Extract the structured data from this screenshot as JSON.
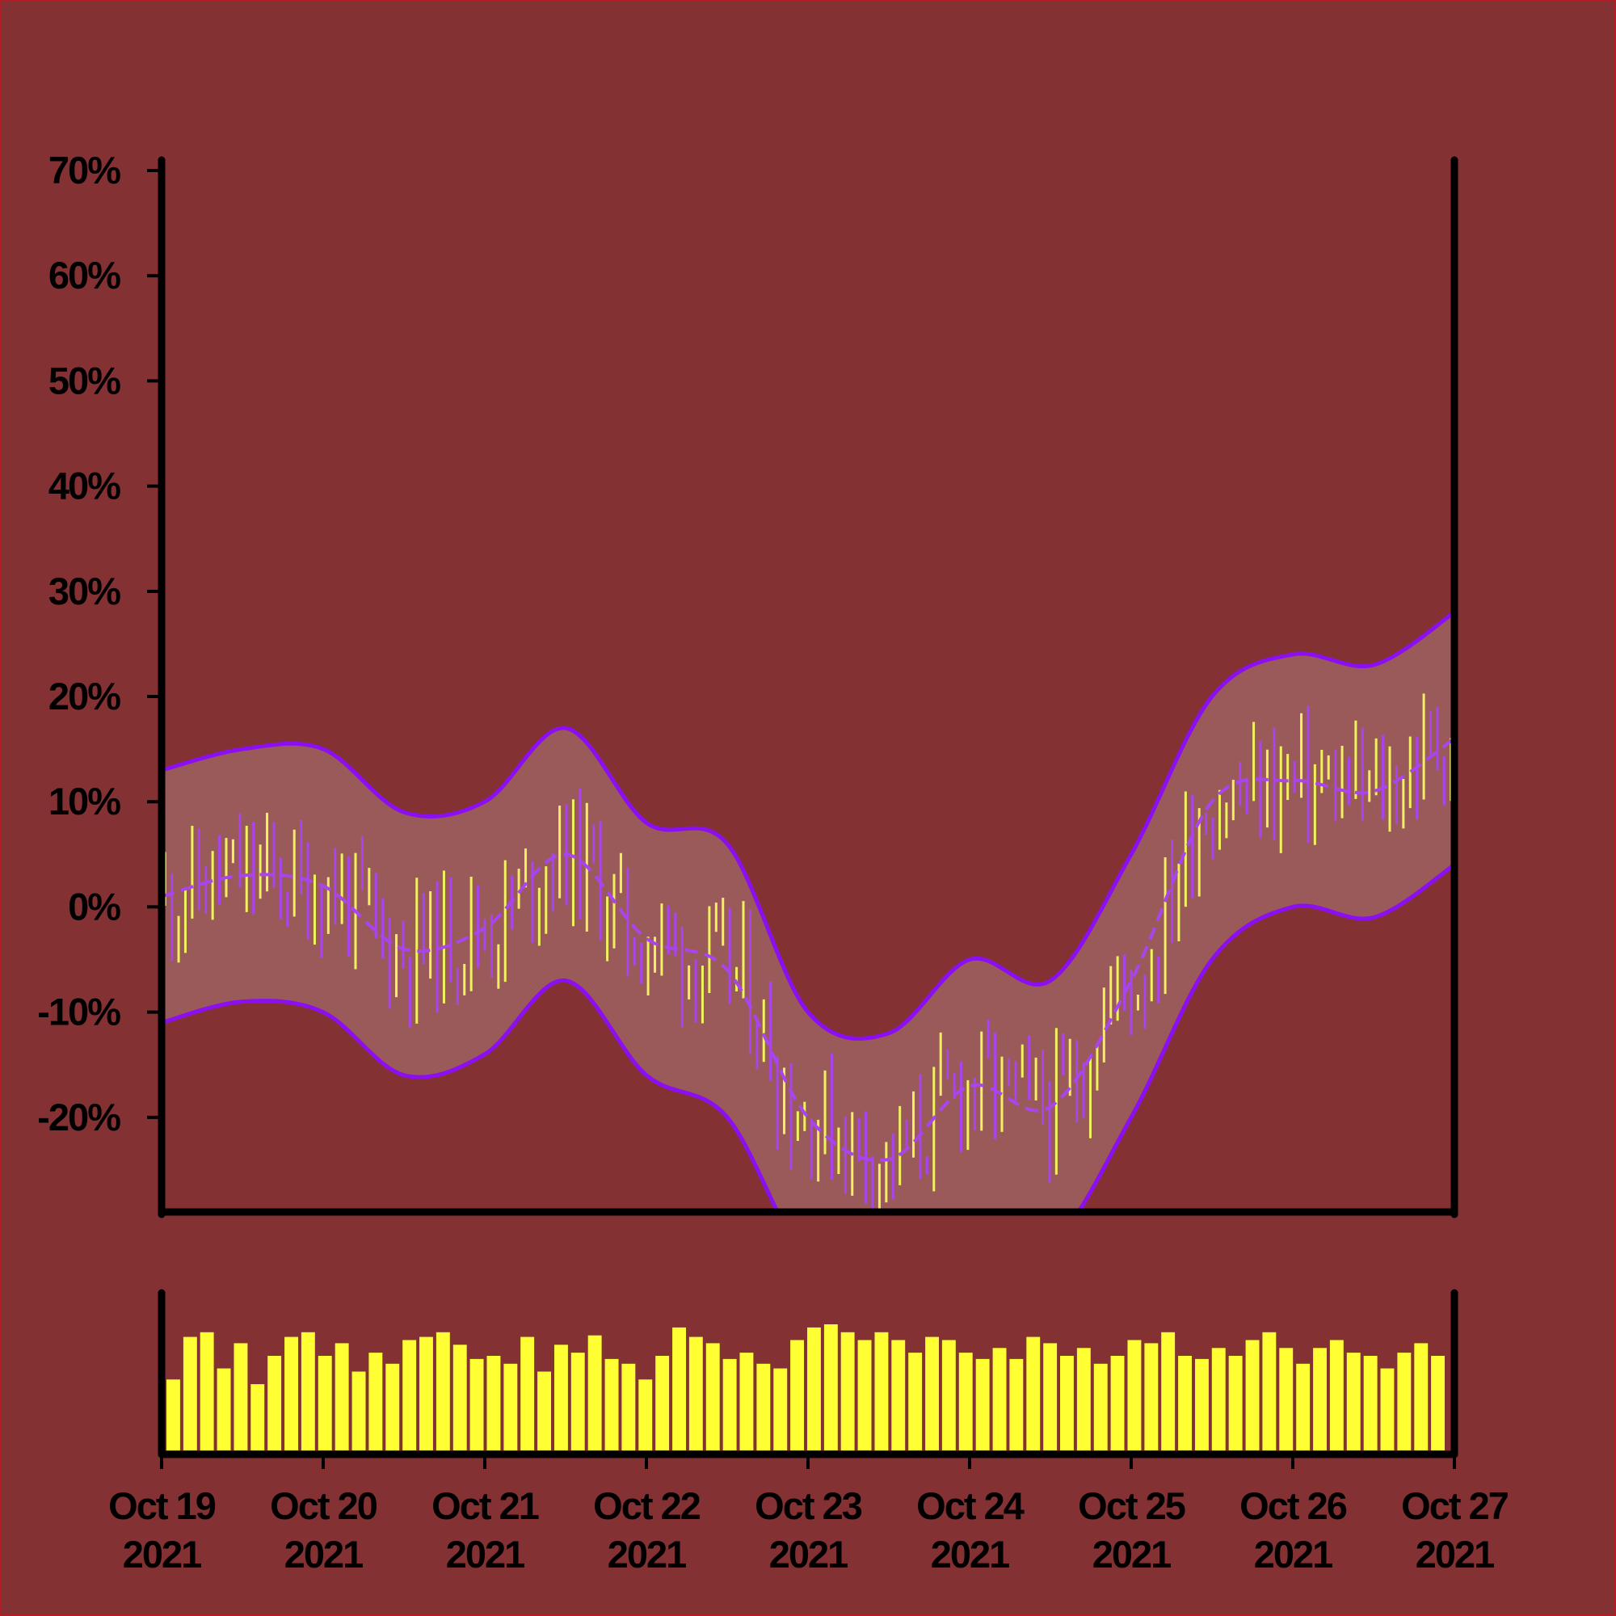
{
  "chart_data": [
    {
      "type": "line",
      "title": "",
      "xlabel": "",
      "ylabel": "",
      "x_range": [
        "2021-10-19",
        "2021-10-27"
      ],
      "ylim": [
        -29,
        71
      ],
      "y_ticks": [
        "70%",
        "60%",
        "50%",
        "40%",
        "30%",
        "20%",
        "10%",
        "0%",
        "-10%",
        "-20%"
      ],
      "y_tick_values": [
        70,
        60,
        50,
        40,
        30,
        20,
        10,
        0,
        -10,
        -20
      ],
      "grid": false,
      "legend": "none",
      "colors": {
        "background": "#843134",
        "band_fill": "#9b5a5a",
        "band_line": "#8c0ff2",
        "middle_line": "#aa44ee",
        "up_bar": "#f0f060",
        "down_bar": "#aa44ee"
      },
      "series": [
        {
          "x": [
            "2021-10-19",
            "2021-10-19 12:00",
            "2021-10-20",
            "2021-10-20 12:00",
            "2021-10-21",
            "2021-10-21 12:00",
            "2021-10-22",
            "2021-10-22 12:00",
            "2021-10-23",
            "2021-10-23 12:00",
            "2021-10-24",
            "2021-10-24 12:00",
            "2021-10-25",
            "2021-10-25 12:00",
            "2021-10-26",
            "2021-10-26 12:00",
            "2021-10-27"
          ],
          "values": [
            13,
            15,
            15,
            9,
            10,
            17,
            8,
            6,
            -10,
            -12,
            -5,
            -7,
            5,
            20,
            24,
            23,
            28
          ]
        },
        {
          "x": [
            "2021-10-19",
            "2021-10-19 12:00",
            "2021-10-20",
            "2021-10-20 12:00",
            "2021-10-21",
            "2021-10-21 12:00",
            "2021-10-22",
            "2021-10-22 12:00",
            "2021-10-23",
            "2021-10-23 12:00",
            "2021-10-24",
            "2021-10-24 12:00",
            "2021-10-25",
            "2021-10-25 12:00",
            "2021-10-26",
            "2021-10-26 12:00",
            "2021-10-27"
          ],
          "values": [
            1,
            3,
            2,
            -4,
            -2,
            5,
            -3,
            -6,
            -20,
            -24,
            -17,
            -19,
            -7,
            10,
            12,
            11,
            16
          ]
        },
        {
          "x": [
            "2021-10-19",
            "2021-10-19 12:00",
            "2021-10-20",
            "2021-10-20 12:00",
            "2021-10-21",
            "2021-10-21 12:00",
            "2021-10-22",
            "2021-10-22 12:00",
            "2021-10-23",
            "2021-10-23 12:00",
            "2021-10-24",
            "2021-10-24 12:00",
            "2021-10-25",
            "2021-10-25 12:00",
            "2021-10-26",
            "2021-10-26 12:00",
            "2021-10-27"
          ],
          "values": [
            -11,
            -9,
            -10,
            -16,
            -14,
            -7,
            -16,
            -20,
            -34,
            -38,
            -30,
            -32,
            -20,
            -5,
            0,
            -1,
            4
          ]
        }
      ]
    },
    {
      "type": "bar",
      "title": "",
      "x_ticks": [
        "Oct 19\n2021",
        "Oct 20\n2021",
        "Oct 21\n2021",
        "Oct 22\n2021",
        "Oct 23\n2021",
        "Oct 24\n2021",
        "Oct 25\n2021",
        "Oct 26\n2021",
        "Oct 27\n2021"
      ],
      "x_tick_lines": [
        [
          "Oct 19",
          "2021"
        ],
        [
          "Oct 20",
          "2021"
        ],
        [
          "Oct 21",
          "2021"
        ],
        [
          "Oct 22",
          "2021"
        ],
        [
          "Oct 23",
          "2021"
        ],
        [
          "Oct 24",
          "2021"
        ],
        [
          "Oct 25",
          "2021"
        ],
        [
          "Oct 26",
          "2021"
        ],
        [
          "Oct 27",
          "2021"
        ]
      ],
      "values": [
        0.45,
        0.72,
        0.75,
        0.52,
        0.68,
        0.42,
        0.6,
        0.72,
        0.75,
        0.6,
        0.68,
        0.5,
        0.62,
        0.55,
        0.7,
        0.72,
        0.75,
        0.67,
        0.58,
        0.6,
        0.55,
        0.72,
        0.5,
        0.67,
        0.62,
        0.73,
        0.58,
        0.55,
        0.45,
        0.6,
        0.78,
        0.72,
        0.68,
        0.58,
        0.62,
        0.55,
        0.52,
        0.7,
        0.78,
        0.8,
        0.75,
        0.7,
        0.75,
        0.7,
        0.62,
        0.72,
        0.7,
        0.62,
        0.58,
        0.65,
        0.58,
        0.72,
        0.68,
        0.6,
        0.65,
        0.55,
        0.6,
        0.7,
        0.68,
        0.75,
        0.6,
        0.58,
        0.65,
        0.6,
        0.7,
        0.75,
        0.65,
        0.55,
        0.65,
        0.7,
        0.62,
        0.6,
        0.52,
        0.62,
        0.68,
        0.6
      ],
      "ylim": [
        0,
        1
      ]
    }
  ]
}
